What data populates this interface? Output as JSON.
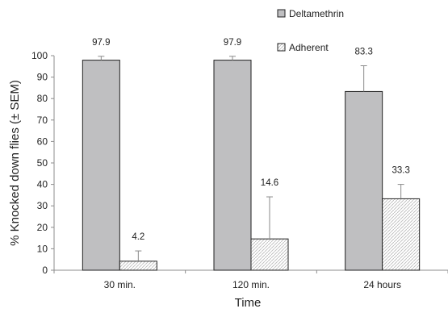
{
  "chart_data": {
    "type": "bar",
    "categories": [
      "30 min.",
      "120 min.",
      "24 hours"
    ],
    "series": [
      {
        "name": "Deltamethrin",
        "values": [
          97.9,
          97.9,
          83.3
        ],
        "errors": [
          1.8,
          1.8,
          12.0
        ],
        "value_labels": [
          "97.9",
          "97.9",
          "83.3"
        ],
        "color": "#bfbfc1",
        "pattern": "solid"
      },
      {
        "name": "Adherent",
        "values": [
          4.2,
          14.6,
          33.3
        ],
        "errors": [
          4.8,
          19.6,
          6.7
        ],
        "value_labels": [
          "4.2",
          "14.6",
          "33.3"
        ],
        "color": "#ffffff",
        "pattern": "hatched"
      }
    ],
    "title": "",
    "xlabel": "Time",
    "ylabel": "% Knocked down flies (± SEM)",
    "ylim": [
      0,
      100
    ],
    "yticks": [
      0,
      10,
      20,
      30,
      40,
      50,
      60,
      70,
      80,
      90,
      100
    ],
    "grid": false,
    "legend": "top-right"
  }
}
